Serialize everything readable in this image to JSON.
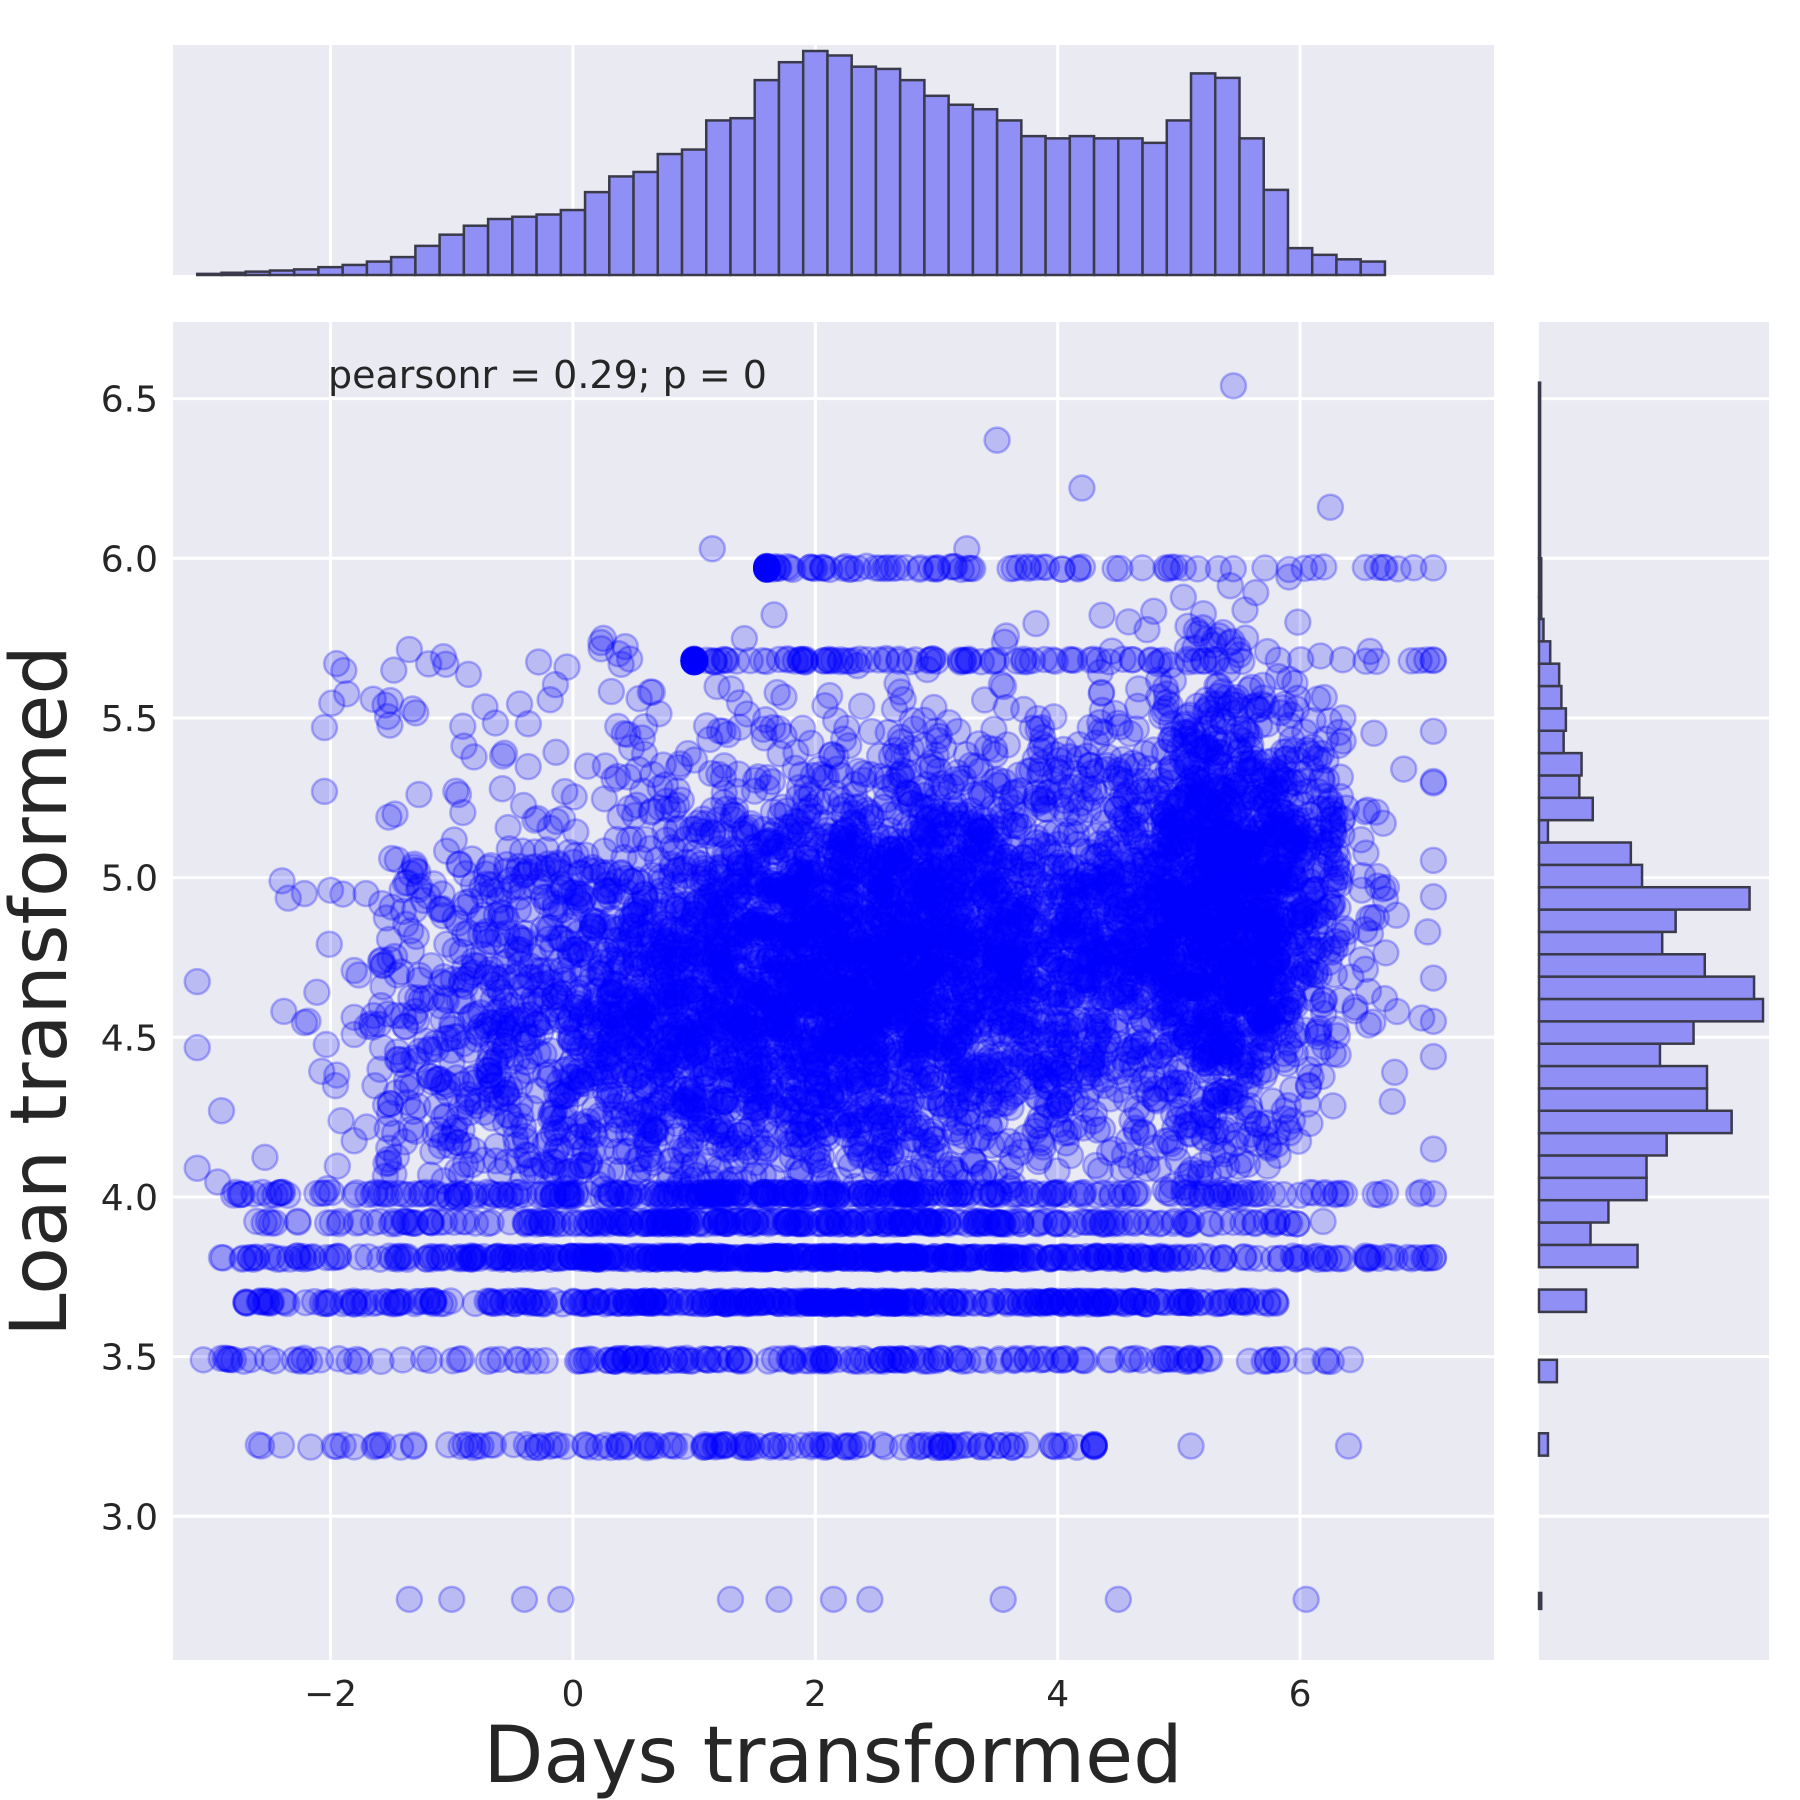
{
  "chart_data": {
    "type": "scatter",
    "subtype": "jointplot",
    "xlabel": "Days transformed",
    "ylabel": "Loan transformed",
    "annotation": "pearsonr = 0.29; p = 0",
    "xlim": [
      -3.3,
      7.6
    ],
    "ylim": [
      2.55,
      6.74
    ],
    "x_ticks": [
      -2,
      0,
      2,
      4,
      6
    ],
    "x_tick_labels": [
      "−2",
      "0",
      "2",
      "4",
      "6"
    ],
    "y_ticks": [
      3.0,
      3.5,
      4.0,
      4.5,
      5.0,
      5.5,
      6.0,
      6.5
    ],
    "y_tick_labels": [
      "3.0",
      "3.5",
      "4.0",
      "4.5",
      "5.0",
      "5.5",
      "6.0",
      "6.5"
    ],
    "grid": true,
    "colors": {
      "background": "#eaeaf2",
      "grid": "#ffffff",
      "marker": "#0000ff",
      "hist_fill": "#8f8ff5",
      "hist_edge": "#3a3a4a"
    },
    "marker_alpha": 0.2,
    "scatter_outliers": [
      {
        "x": 5.45,
        "y": 6.54
      },
      {
        "x": 3.5,
        "y": 6.37
      },
      {
        "x": 4.2,
        "y": 6.22
      },
      {
        "x": 6.25,
        "y": 6.16
      },
      {
        "x": 1.15,
        "y": 6.03
      },
      {
        "x": 3.25,
        "y": 6.03
      },
      {
        "x": -1.95,
        "y": 5.67
      },
      {
        "x": -2.05,
        "y": 5.47
      },
      {
        "x": -2.05,
        "y": 5.27
      },
      {
        "x": -2.4,
        "y": 4.99
      },
      {
        "x": -3.1,
        "y": 4.09
      },
      {
        "x": -2.9,
        "y": 4.27
      },
      {
        "x": -3.05,
        "y": 3.49
      },
      {
        "x": -2.7,
        "y": 3.67
      },
      {
        "x": -2.9,
        "y": 3.81
      },
      {
        "x": 6.4,
        "y": 3.22
      },
      {
        "x": 5.1,
        "y": 3.22
      },
      {
        "x": 6.05,
        "y": 2.74
      },
      {
        "x": 4.5,
        "y": 2.74
      },
      {
        "x": 3.55,
        "y": 2.74
      },
      {
        "x": 2.45,
        "y": 2.74
      },
      {
        "x": 2.15,
        "y": 2.74
      },
      {
        "x": 1.7,
        "y": 2.74
      },
      {
        "x": 1.3,
        "y": 2.74
      },
      {
        "x": -0.1,
        "y": 2.74
      },
      {
        "x": -0.4,
        "y": 2.74
      },
      {
        "x": -1.0,
        "y": 2.74
      },
      {
        "x": -1.35,
        "y": 2.74
      },
      {
        "x": 7.1,
        "y": 5.97
      },
      {
        "x": 7.1,
        "y": 5.68
      },
      {
        "x": 7.1,
        "y": 4.94
      },
      {
        "x": 7.1,
        "y": 4.55
      },
      {
        "x": 7.1,
        "y": 4.15
      },
      {
        "x": 7.1,
        "y": 4.01
      },
      {
        "x": 7.1,
        "y": 3.81
      }
    ],
    "x_hist": {
      "bin_start": -3.1,
      "bin_width": 0.2,
      "relative_heights": [
        0.005,
        0.01,
        0.015,
        0.02,
        0.025,
        0.035,
        0.045,
        0.06,
        0.08,
        0.13,
        0.18,
        0.22,
        0.25,
        0.26,
        0.27,
        0.29,
        0.37,
        0.44,
        0.46,
        0.54,
        0.56,
        0.69,
        0.7,
        0.87,
        0.95,
        1.0,
        0.98,
        0.93,
        0.92,
        0.87,
        0.8,
        0.76,
        0.74,
        0.69,
        0.62,
        0.61,
        0.62,
        0.61,
        0.61,
        0.59,
        0.69,
        0.9,
        0.88,
        0.61,
        0.38,
        0.12,
        0.09,
        0.07,
        0.06
      ]
    },
    "y_hist": {
      "bins": [
        {
          "y0": 2.71,
          "y1": 2.76,
          "h": 0.01
        },
        {
          "y0": 3.19,
          "y1": 3.26,
          "h": 0.04
        },
        {
          "y0": 3.42,
          "y1": 3.49,
          "h": 0.08
        },
        {
          "y0": 3.64,
          "y1": 3.71,
          "h": 0.21
        },
        {
          "y0": 3.78,
          "y1": 3.85,
          "h": 0.44
        },
        {
          "y0": 3.85,
          "y1": 3.92,
          "h": 0.23
        },
        {
          "y0": 3.92,
          "y1": 3.99,
          "h": 0.31
        },
        {
          "y0": 3.99,
          "y1": 4.06,
          "h": 0.48
        },
        {
          "y0": 4.06,
          "y1": 4.13,
          "h": 0.48
        },
        {
          "y0": 4.13,
          "y1": 4.2,
          "h": 0.57
        },
        {
          "y0": 4.2,
          "y1": 4.27,
          "h": 0.86
        },
        {
          "y0": 4.27,
          "y1": 4.34,
          "h": 0.75
        },
        {
          "y0": 4.34,
          "y1": 4.41,
          "h": 0.75
        },
        {
          "y0": 4.41,
          "y1": 4.48,
          "h": 0.54
        },
        {
          "y0": 4.48,
          "y1": 4.55,
          "h": 0.69
        },
        {
          "y0": 4.55,
          "y1": 4.62,
          "h": 1.0
        },
        {
          "y0": 4.62,
          "y1": 4.69,
          "h": 0.96
        },
        {
          "y0": 4.69,
          "y1": 4.76,
          "h": 0.74
        },
        {
          "y0": 4.76,
          "y1": 4.83,
          "h": 0.55
        },
        {
          "y0": 4.83,
          "y1": 4.9,
          "h": 0.61
        },
        {
          "y0": 4.9,
          "y1": 4.97,
          "h": 0.94
        },
        {
          "y0": 4.97,
          "y1": 5.04,
          "h": 0.46
        },
        {
          "y0": 5.04,
          "y1": 5.11,
          "h": 0.41
        },
        {
          "y0": 5.11,
          "y1": 5.18,
          "h": 0.04
        },
        {
          "y0": 5.18,
          "y1": 5.25,
          "h": 0.24
        },
        {
          "y0": 5.25,
          "y1": 5.32,
          "h": 0.18
        },
        {
          "y0": 5.32,
          "y1": 5.39,
          "h": 0.19
        },
        {
          "y0": 5.39,
          "y1": 5.46,
          "h": 0.11
        },
        {
          "y0": 5.46,
          "y1": 5.53,
          "h": 0.12
        },
        {
          "y0": 5.53,
          "y1": 5.6,
          "h": 0.1
        },
        {
          "y0": 5.6,
          "y1": 5.67,
          "h": 0.09
        },
        {
          "y0": 5.67,
          "y1": 5.74,
          "h": 0.05
        },
        {
          "y0": 5.74,
          "y1": 5.81,
          "h": 0.02
        },
        {
          "y0": 5.81,
          "y1": 5.88,
          "h": 0.01
        },
        {
          "y0": 5.88,
          "y1": 6.0,
          "h": 0.01
        },
        {
          "y0": 6.0,
          "y1": 6.55,
          "h": 0.005
        }
      ]
    }
  }
}
